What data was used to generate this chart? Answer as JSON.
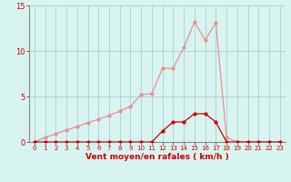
{
  "x": [
    0,
    1,
    2,
    3,
    4,
    5,
    6,
    7,
    8,
    9,
    10,
    11,
    12,
    13,
    14,
    15,
    16,
    17,
    18,
    19,
    20,
    21,
    22,
    23
  ],
  "y_rafales": [
    0,
    0.5,
    0.9,
    1.3,
    1.7,
    2.1,
    2.5,
    2.9,
    3.4,
    3.9,
    5.2,
    5.3,
    8.1,
    8.1,
    10.4,
    13.2,
    11.2,
    13.1,
    0.5,
    0,
    0,
    0,
    0,
    0
  ],
  "y_moyen": [
    0,
    0,
    0,
    0,
    0,
    0,
    0,
    0,
    0,
    0,
    0,
    0,
    1.2,
    2.2,
    2.2,
    3.1,
    3.1,
    2.2,
    0,
    0,
    0,
    0,
    0,
    0
  ],
  "xlabel": "Vent moyen/en rafales ( km/h )",
  "ylim": [
    0,
    15
  ],
  "xlim": [
    -0.5,
    23.5
  ],
  "yticks": [
    0,
    5,
    10,
    15
  ],
  "xticks": [
    0,
    1,
    2,
    3,
    4,
    5,
    6,
    7,
    8,
    9,
    10,
    11,
    12,
    13,
    14,
    15,
    16,
    17,
    18,
    19,
    20,
    21,
    22,
    23
  ],
  "color_rafales": "#e89090",
  "color_moyen": "#cc0000",
  "bg_color": "#d8f4f0",
  "grid_color": "#aacece",
  "tick_color": "#cc0000",
  "label_color": "#cc0000",
  "spine_color": "#888888",
  "marker_size": 2.0,
  "line_width": 0.9
}
